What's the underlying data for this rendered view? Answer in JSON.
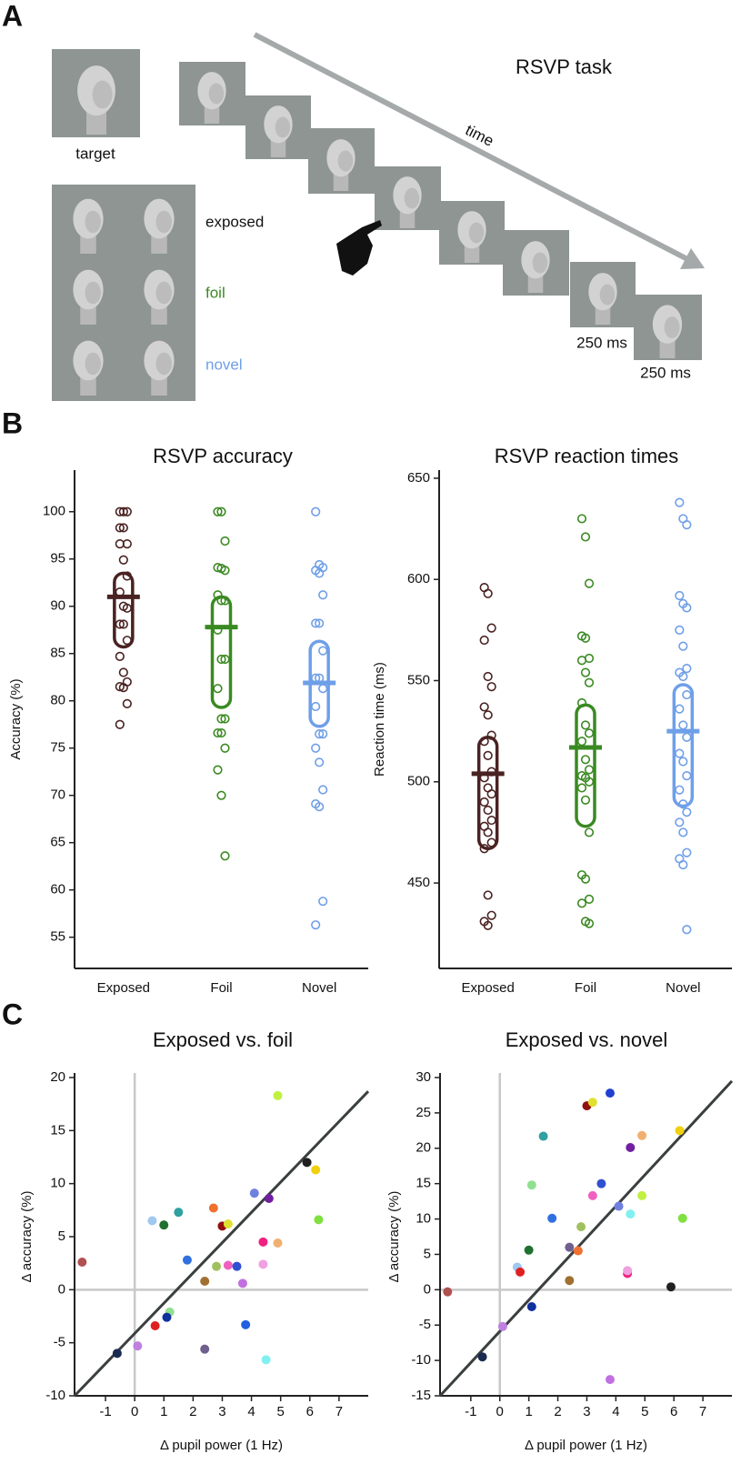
{
  "panel_labels": [
    "A",
    "B",
    "C"
  ],
  "task": {
    "title": "RSVP task",
    "time_label": "time",
    "target_label": "target",
    "exposed_label": "exposed",
    "foil_label": "foil",
    "novel_label": "novel",
    "duration_labels": [
      "250 ms",
      "250 ms"
    ]
  },
  "chart_data": [
    {
      "type": "strip",
      "title": "RSVP accuracy",
      "y_label": "Accuracy (%)",
      "categories": [
        "Exposed",
        "Foil",
        "Novel"
      ],
      "colors": [
        "#4a2222",
        "#3a8a22",
        "#6f9fe8"
      ],
      "groups": [
        {
          "values": [
            100,
            100,
            100,
            98.3,
            98.3,
            96.6,
            96.6,
            94.9,
            93.2,
            91.5,
            90,
            89.8,
            88.1,
            88.1,
            86.4,
            84.7,
            83,
            82,
            81.5,
            81.4,
            79.7,
            77.5
          ],
          "mean": 91,
          "ci": [
            85.7,
            93.5
          ]
        },
        {
          "values": [
            100,
            100,
            96.9,
            94.1,
            94,
            93.8,
            91.2,
            90.6,
            90.6,
            87.5,
            84.4,
            84.4,
            81.3,
            78.1,
            78.1,
            76.6,
            76.6,
            75,
            72.7,
            70,
            63.6
          ],
          "mean": 87.8,
          "ci": [
            79.3,
            91
          ]
        },
        {
          "values": [
            100,
            94.4,
            94.1,
            93.8,
            93.5,
            91.2,
            88.2,
            88.2,
            85.3,
            82.4,
            82.4,
            81.3,
            79.4,
            76.5,
            76.5,
            75,
            73.5,
            70.6,
            69.1,
            68.8,
            58.8,
            56.3
          ],
          "mean": 81.9,
          "ci": [
            77.3,
            86.3
          ]
        }
      ],
      "ylim": [
        51.7,
        104.4
      ],
      "yticks": [
        55,
        60,
        65,
        70,
        75,
        80,
        85,
        90,
        95,
        100
      ]
    },
    {
      "type": "strip",
      "title": "RSVP reaction times",
      "y_label": "Reaction time (ms)",
      "categories": [
        "Exposed",
        "Foil",
        "Novel"
      ],
      "colors": [
        "#4a2222",
        "#3a8a22",
        "#6f9fe8"
      ],
      "groups": [
        {
          "values": [
            596,
            593,
            576,
            570,
            552,
            547,
            537,
            533,
            523,
            520,
            513,
            505,
            502,
            497,
            494,
            490,
            486,
            481,
            478,
            475,
            470,
            467,
            444,
            434,
            431,
            429
          ],
          "mean": 504,
          "ci": [
            467,
            522
          ]
        },
        {
          "values": [
            630,
            621,
            598,
            572,
            571,
            561,
            560,
            554,
            549,
            539,
            528,
            524,
            520,
            511,
            506,
            503,
            502,
            500,
            497,
            491,
            475,
            454,
            452,
            442,
            440,
            431,
            430
          ],
          "mean": 517,
          "ci": [
            478,
            538
          ]
        },
        {
          "values": [
            638,
            630,
            627,
            592,
            588,
            586,
            575,
            567,
            556,
            554,
            552,
            543,
            536,
            528,
            522,
            514,
            510,
            503,
            496,
            489,
            485,
            480,
            475,
            465,
            462,
            459,
            427
          ],
          "mean": 525,
          "ci": [
            488,
            548
          ]
        }
      ],
      "ylim": [
        407.8,
        654
      ],
      "yticks": [
        450,
        500,
        550,
        600,
        650
      ]
    },
    {
      "type": "scatter",
      "title": "Exposed vs. foil",
      "x_label": "Δ pupil power (1 Hz)",
      "y_label": "Δ accuracy (%)",
      "x": [
        -1.8,
        -0.6,
        0.1,
        0.6,
        1.0,
        1.2,
        1.1,
        0.7,
        1.5,
        1.8,
        2.4,
        2.4,
        2.7,
        2.8,
        3.0,
        3.2,
        3.2,
        3.5,
        3.7,
        3.8,
        4.1,
        4.4,
        4.4,
        4.6,
        4.5,
        4.9,
        4.9,
        5.9,
        6.2,
        6.3
      ],
      "values": [
        2.6,
        -6,
        -5.3,
        6.5,
        6.1,
        -2.1,
        -2.6,
        -3.4,
        7.3,
        2.8,
        0.8,
        -5.6,
        7.7,
        2.2,
        6,
        6.2,
        2.3,
        2.2,
        0.6,
        -3.3,
        9.1,
        4.5,
        2.4,
        8.6,
        -6.6,
        4.4,
        18.3,
        12,
        11.3,
        6.6
      ],
      "colors": [
        "#b05050",
        "#1a2a50",
        "#c080e0",
        "#a0c8f0",
        "#207030",
        "#90e090",
        "#1030a0",
        "#e02020",
        "#30a0a0",
        "#3070e0",
        "#a07030",
        "#706090",
        "#f07030",
        "#a0c060",
        "#901010",
        "#e0e030",
        "#f060c0",
        "#3050d0",
        "#c070e0",
        "#2060e0",
        "#7080e0",
        "#f02080",
        "#f0a0e0",
        "#7020a0",
        "#80f0f0",
        "#f0b070",
        "#c0f040",
        "#202020",
        "#f0d010",
        "#80e040"
      ],
      "xlim": [
        -2.06,
        8.0
      ],
      "ylim": [
        -10,
        20
      ],
      "xticks": [
        -1,
        0,
        1,
        2,
        3,
        4,
        5,
        6,
        7
      ],
      "yticks": [
        -10,
        -5,
        0,
        5,
        10,
        15,
        20
      ],
      "reference_line": {
        "x": [
          -2.06,
          8.0
        ],
        "y": [
          -10,
          18.7
        ]
      }
    },
    {
      "type": "scatter",
      "title": "Exposed vs. novel",
      "x_label": "Δ pupil power (1 Hz)",
      "y_label": "Δ accuracy (%)",
      "x": [
        -1.8,
        -0.6,
        0.1,
        0.6,
        0.7,
        1.0,
        1.1,
        1.1,
        1.5,
        1.8,
        2.4,
        2.4,
        2.7,
        2.8,
        3.0,
        3.2,
        3.2,
        3.5,
        3.8,
        3.8,
        4.1,
        4.4,
        4.4,
        4.5,
        4.5,
        4.9,
        4.9,
        5.9,
        6.2,
        6.3
      ],
      "values": [
        -0.3,
        -9.5,
        -5.2,
        3.2,
        2.5,
        5.6,
        -2.4,
        14.8,
        21.7,
        10.1,
        6,
        1.3,
        5.5,
        8.9,
        26,
        26.5,
        13.3,
        15,
        27.8,
        -12.7,
        11.8,
        2.3,
        2.7,
        10.7,
        20.1,
        21.8,
        13.3,
        0.4,
        22.5,
        10.1
      ],
      "colors": [
        "#b05050",
        "#1a2a50",
        "#c080e0",
        "#a0c8f0",
        "#e02020",
        "#207030",
        "#1030a0",
        "#90e090",
        "#30a0a0",
        "#3070e0",
        "#706090",
        "#a07030",
        "#f07030",
        "#a0c060",
        "#901010",
        "#e0e030",
        "#f060c0",
        "#3050d0",
        "#2040d0",
        "#c070e0",
        "#7080e0",
        "#f02080",
        "#f0a0e0",
        "#80f0f0",
        "#7020a0",
        "#f0b070",
        "#c0f040",
        "#202020",
        "#f0d010",
        "#80e040"
      ],
      "xlim": [
        -2.06,
        8.0
      ],
      "ylim": [
        -15,
        30
      ],
      "xticks": [
        -1,
        0,
        1,
        2,
        3,
        4,
        5,
        6,
        7
      ],
      "yticks": [
        -15,
        -10,
        -5,
        0,
        5,
        10,
        15,
        20,
        25,
        30
      ],
      "reference_line": {
        "x": [
          -2.06,
          8.0
        ],
        "y": [
          -15,
          29.5
        ]
      }
    }
  ]
}
